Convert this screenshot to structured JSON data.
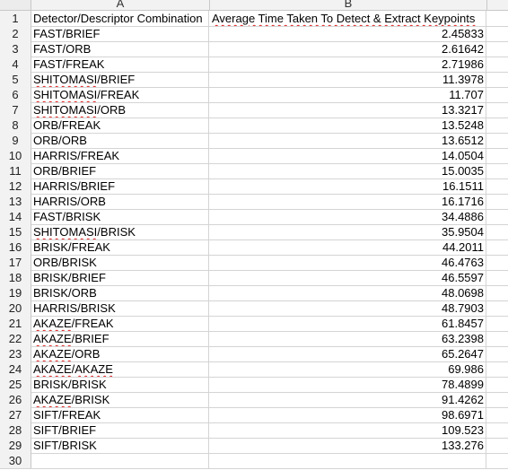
{
  "columns": [
    "A",
    "B"
  ],
  "header": {
    "row_number": "1",
    "a": "Detector/Descriptor Combination",
    "b": "Average Time Taken To Detect & Extract Keypoints"
  },
  "rows": [
    {
      "n": "2",
      "a": "FAST/BRIEF",
      "b": "2.45833"
    },
    {
      "n": "3",
      "a": "FAST/ORB",
      "b": "2.61642"
    },
    {
      "n": "4",
      "a": "FAST/FREAK",
      "b": "2.71986"
    },
    {
      "n": "5",
      "a": "SHITOMASI/BRIEF",
      "b": "11.3978"
    },
    {
      "n": "6",
      "a": "SHITOMASI/FREAK",
      "b": "11.707"
    },
    {
      "n": "7",
      "a": "SHITOMASI/ORB",
      "b": "13.3217"
    },
    {
      "n": "8",
      "a": "ORB/FREAK",
      "b": "13.5248"
    },
    {
      "n": "9",
      "a": "ORB/ORB",
      "b": "13.6512"
    },
    {
      "n": "10",
      "a": "HARRIS/FREAK",
      "b": "14.0504"
    },
    {
      "n": "11",
      "a": "ORB/BRIEF",
      "b": "15.0035"
    },
    {
      "n": "12",
      "a": "HARRIS/BRIEF",
      "b": "16.1511"
    },
    {
      "n": "13",
      "a": "HARRIS/ORB",
      "b": "16.1716"
    },
    {
      "n": "14",
      "a": "FAST/BRISK",
      "b": "34.4886"
    },
    {
      "n": "15",
      "a": "SHITOMASI/BRISK",
      "b": "35.9504"
    },
    {
      "n": "16",
      "a": "BRISK/FREAK",
      "b": "44.2011"
    },
    {
      "n": "17",
      "a": "ORB/BRISK",
      "b": "46.4763"
    },
    {
      "n": "18",
      "a": "BRISK/BRIEF",
      "b": "46.5597"
    },
    {
      "n": "19",
      "a": "BRISK/ORB",
      "b": "48.0698"
    },
    {
      "n": "20",
      "a": "HARRIS/BRISK",
      "b": "48.7903"
    },
    {
      "n": "21",
      "a": "AKAZE/FREAK",
      "b": "61.8457"
    },
    {
      "n": "22",
      "a": "AKAZE/BRIEF",
      "b": "63.2398"
    },
    {
      "n": "23",
      "a": "AKAZE/ORB",
      "b": "65.2647"
    },
    {
      "n": "24",
      "a": "AKAZE/AKAZE",
      "b": "69.986"
    },
    {
      "n": "25",
      "a": "BRISK/BRISK",
      "b": "78.4899"
    },
    {
      "n": "26",
      "a": "AKAZE/BRISK",
      "b": "91.4262"
    },
    {
      "n": "27",
      "a": "SIFT/FREAK",
      "b": "98.6971"
    },
    {
      "n": "28",
      "a": "SIFT/BRIEF",
      "b": "109.523"
    },
    {
      "n": "29",
      "a": "SIFT/BRISK",
      "b": "133.276"
    },
    {
      "n": "30",
      "a": "",
      "b": ""
    }
  ],
  "colors": {
    "spellcheck": "#e02020",
    "header_bg": "#f2f2f2",
    "gridline": "#d4d4d4"
  }
}
